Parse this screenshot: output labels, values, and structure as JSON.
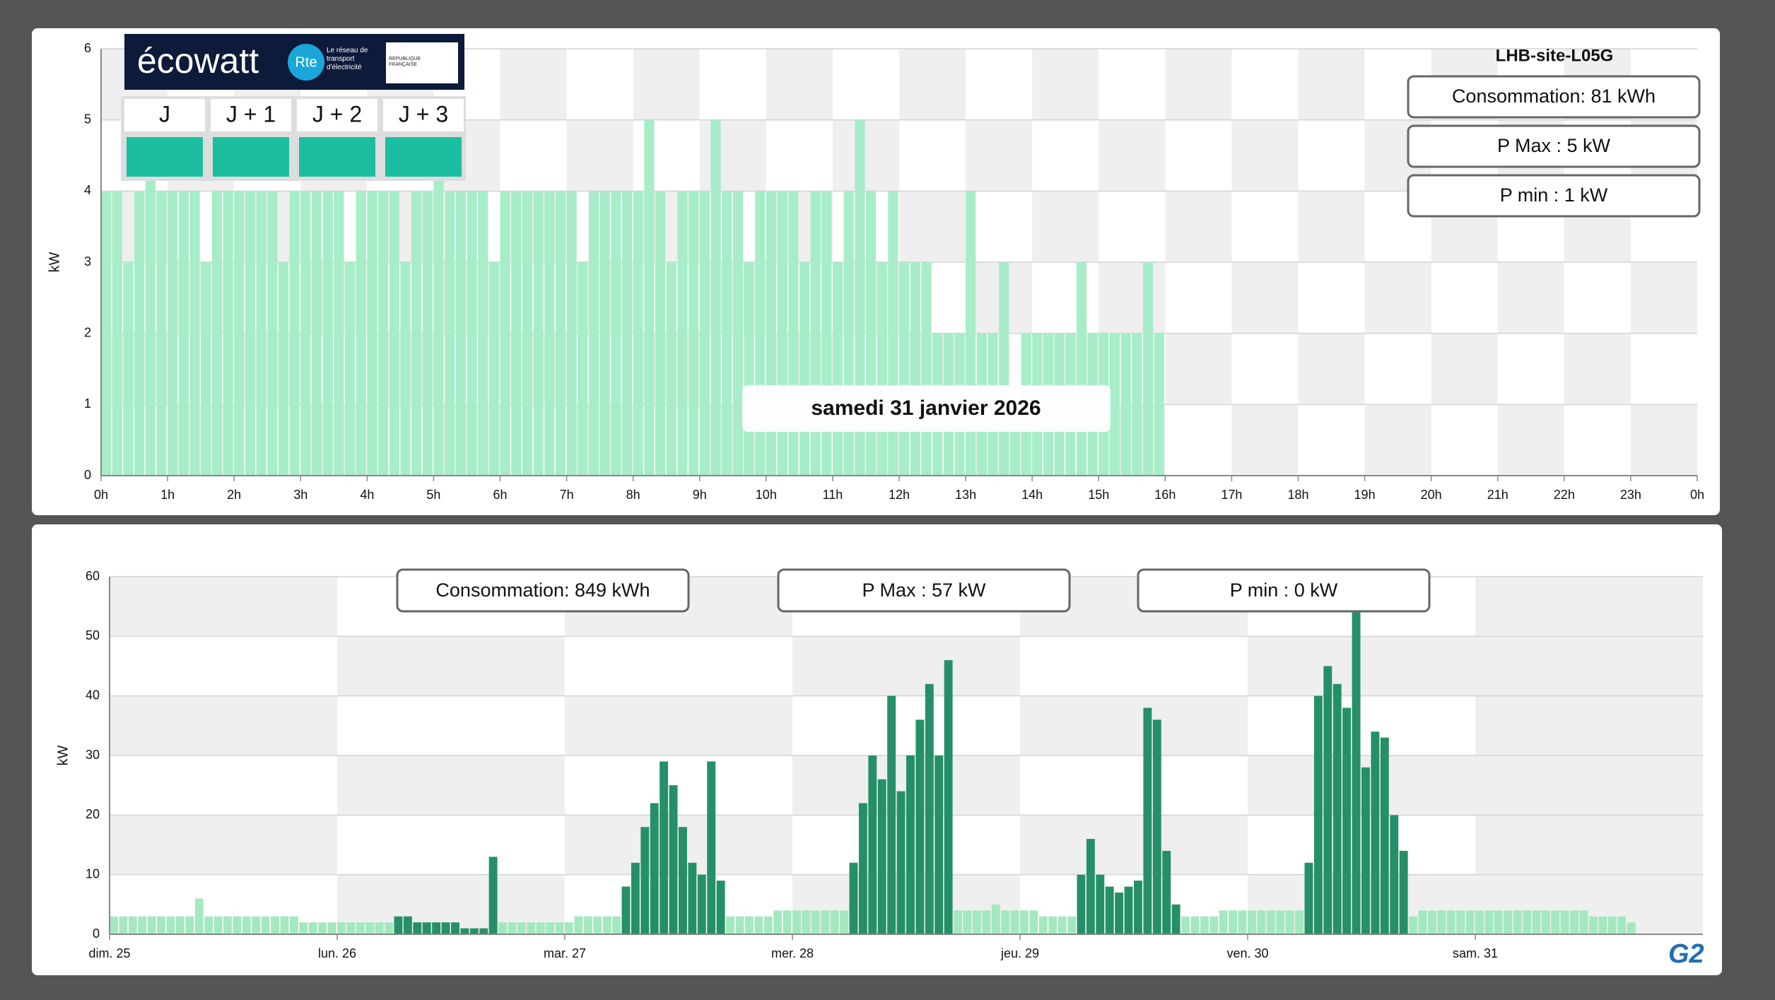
{
  "chart_data": [
    {
      "type": "bar",
      "title": "LHB-site-L05G",
      "ylabel": "kW",
      "info_boxes": [
        "Consommation: 81 kWh",
        "P Max :  5 kW",
        "P min : 1 kW"
      ],
      "date_label": "samedi 31 janvier 2026",
      "xlim": [
        0,
        1440
      ],
      "ylim": [
        0,
        6
      ],
      "grid": true,
      "xticks": [
        {
          "value": 0,
          "label": "0h"
        },
        {
          "value": 60,
          "label": "1h"
        },
        {
          "value": 120,
          "label": "2h"
        },
        {
          "value": 180,
          "label": "3h"
        },
        {
          "value": 240,
          "label": "4h"
        },
        {
          "value": 300,
          "label": "5h"
        },
        {
          "value": 360,
          "label": "6h"
        },
        {
          "value": 420,
          "label": "7h"
        },
        {
          "value": 480,
          "label": "8h"
        },
        {
          "value": 540,
          "label": "9h"
        },
        {
          "value": 600,
          "label": "10h"
        },
        {
          "value": 660,
          "label": "11h"
        },
        {
          "value": 720,
          "label": "12h"
        },
        {
          "value": 780,
          "label": "13h"
        },
        {
          "value": 840,
          "label": "14h"
        },
        {
          "value": 900,
          "label": "15h"
        },
        {
          "value": 960,
          "label": "16h"
        },
        {
          "value": 1020,
          "label": "17h"
        },
        {
          "value": 1080,
          "label": "18h"
        },
        {
          "value": 1140,
          "label": "19h"
        },
        {
          "value": 1200,
          "label": "20h"
        },
        {
          "value": 1260,
          "label": "21h"
        },
        {
          "value": 1320,
          "label": "22h"
        },
        {
          "value": 1380,
          "label": "23h"
        },
        {
          "value": 1440,
          "label": "0h"
        }
      ],
      "yticks": [
        0,
        1,
        2,
        3,
        4,
        5,
        6
      ],
      "series": [
        {
          "color": "#a6edc8",
          "x": [
            0,
            10,
            20,
            30,
            40,
            50,
            60,
            70,
            80,
            90,
            100,
            110,
            120,
            130,
            140,
            150,
            160,
            170,
            180,
            190,
            200,
            210,
            220,
            230,
            240,
            250,
            260,
            270,
            280,
            290,
            300,
            310,
            320,
            330,
            340,
            350,
            360,
            370,
            380,
            390,
            400,
            410,
            420,
            430,
            440,
            450,
            460,
            470,
            480,
            490,
            500,
            510,
            520,
            530,
            540,
            550,
            560,
            570,
            580,
            590,
            600,
            610,
            620,
            630,
            640,
            650,
            660,
            670,
            680,
            690,
            700,
            710,
            720,
            730,
            740,
            750,
            760,
            770,
            780,
            790,
            800,
            810,
            820,
            830,
            840,
            850,
            860,
            870,
            880,
            890,
            900,
            910,
            920,
            930,
            940,
            950
          ],
          "values": [
            4,
            4,
            3,
            4,
            5,
            4,
            4,
            4,
            4,
            3,
            4,
            4,
            4,
            4,
            4,
            4,
            3,
            4,
            4,
            4,
            4,
            4,
            3,
            4,
            4,
            4,
            4,
            3,
            4,
            4,
            5,
            4,
            4,
            4,
            4,
            3,
            4,
            4,
            4,
            4,
            4,
            4,
            4,
            3,
            4,
            4,
            4,
            4,
            4,
            5,
            4,
            3,
            4,
            4,
            4,
            5,
            4,
            4,
            3,
            4,
            4,
            4,
            4,
            3,
            4,
            4,
            3,
            4,
            5,
            4,
            3,
            4,
            3,
            3,
            3,
            2,
            2,
            2,
            4,
            2,
            2,
            3,
            1,
            2,
            2,
            2,
            2,
            2,
            3,
            2,
            2,
            2,
            2,
            2,
            3,
            2
          ]
        }
      ]
    },
    {
      "type": "bar",
      "ylabel": "kW",
      "info_boxes": [
        "Consommation: 849 kWh",
        "P Max :  57 kW",
        "P min : 0 kW"
      ],
      "xlim": [
        0,
        168
      ],
      "ylim": [
        0,
        60
      ],
      "grid": true,
      "xticks": [
        {
          "value": 0,
          "label": "dim. 25"
        },
        {
          "value": 24,
          "label": "lun. 26"
        },
        {
          "value": 48,
          "label": "mar. 27"
        },
        {
          "value": 72,
          "label": "mer. 28"
        },
        {
          "value": 96,
          "label": "jeu. 29"
        },
        {
          "value": 120,
          "label": "ven. 30"
        },
        {
          "value": 144,
          "label": "sam. 31"
        }
      ],
      "yticks": [
        0,
        10,
        20,
        30,
        40,
        50,
        60
      ],
      "series": [
        {
          "color": "#a4e8c0",
          "x": [
            0,
            1,
            2,
            3,
            4,
            5,
            6,
            7,
            8,
            9,
            10,
            11,
            12,
            13,
            14,
            15,
            16,
            17,
            18,
            19,
            20,
            21,
            22,
            23,
            24,
            25,
            26,
            27,
            28,
            29,
            41,
            42,
            43,
            44,
            45,
            46,
            47,
            48,
            49,
            50,
            51,
            52,
            53,
            65,
            66,
            67,
            68,
            69,
            70,
            71,
            72,
            73,
            74,
            75,
            76,
            77,
            89,
            90,
            91,
            92,
            93,
            94,
            95,
            96,
            97,
            98,
            99,
            100,
            101,
            113,
            114,
            115,
            116,
            117,
            118,
            119,
            120,
            121,
            122,
            123,
            124,
            125,
            137,
            138,
            139,
            140,
            141,
            142,
            143,
            144,
            145,
            146,
            147,
            148,
            149,
            150,
            151,
            152,
            153,
            154,
            155,
            156,
            157,
            158,
            159,
            160
          ],
          "values": [
            3,
            3,
            3,
            3,
            3,
            3,
            3,
            3,
            3,
            6,
            3,
            3,
            3,
            3,
            3,
            3,
            3,
            3,
            3,
            3,
            2,
            2,
            2,
            2,
            2,
            2,
            2,
            2,
            2,
            2,
            2,
            2,
            2,
            2,
            2,
            2,
            2,
            2,
            3,
            3,
            3,
            3,
            3,
            3,
            3,
            3,
            3,
            3,
            4,
            4,
            4,
            4,
            4,
            4,
            4,
            4,
            4,
            4,
            4,
            4,
            5,
            4,
            4,
            4,
            4,
            3,
            3,
            3,
            3,
            3,
            3,
            3,
            3,
            4,
            4,
            4,
            4,
            4,
            4,
            4,
            4,
            4,
            3,
            4,
            4,
            4,
            4,
            4,
            4,
            4,
            4,
            4,
            4,
            4,
            4,
            4,
            4,
            4,
            4,
            4,
            4,
            3,
            3,
            3,
            3,
            2
          ]
        },
        {
          "color": "#259068",
          "x": [
            30,
            31,
            32,
            33,
            34,
            35,
            36,
            37,
            38,
            39,
            40,
            54,
            55,
            56,
            57,
            58,
            59,
            60,
            61,
            62,
            63,
            64,
            78,
            79,
            80,
            81,
            82,
            83,
            84,
            85,
            86,
            87,
            88,
            102,
            103,
            104,
            105,
            106,
            107,
            108,
            109,
            110,
            111,
            112,
            126,
            127,
            128,
            129,
            130,
            131,
            132,
            133,
            134,
            135,
            136
          ],
          "values": [
            3,
            3,
            2,
            2,
            2,
            2,
            2,
            1,
            1,
            1,
            13,
            8,
            12,
            18,
            22,
            29,
            25,
            18,
            12,
            10,
            29,
            9,
            12,
            22,
            30,
            26,
            40,
            24,
            30,
            36,
            42,
            30,
            46,
            10,
            16,
            10,
            8,
            7,
            8,
            9,
            38,
            36,
            14,
            5,
            12,
            40,
            45,
            42,
            38,
            54,
            28,
            34,
            33,
            20,
            14
          ]
        }
      ]
    }
  ],
  "ecowatt": {
    "logo": "écowatt",
    "rte": "Rte",
    "tagline": "Le réseau de transport d'électricité",
    "republique": "RÉPUBLIQUE FRANÇAISE",
    "days": [
      "J",
      "J + 1",
      "J + 2",
      "J + 3"
    ]
  },
  "brand": "G2"
}
